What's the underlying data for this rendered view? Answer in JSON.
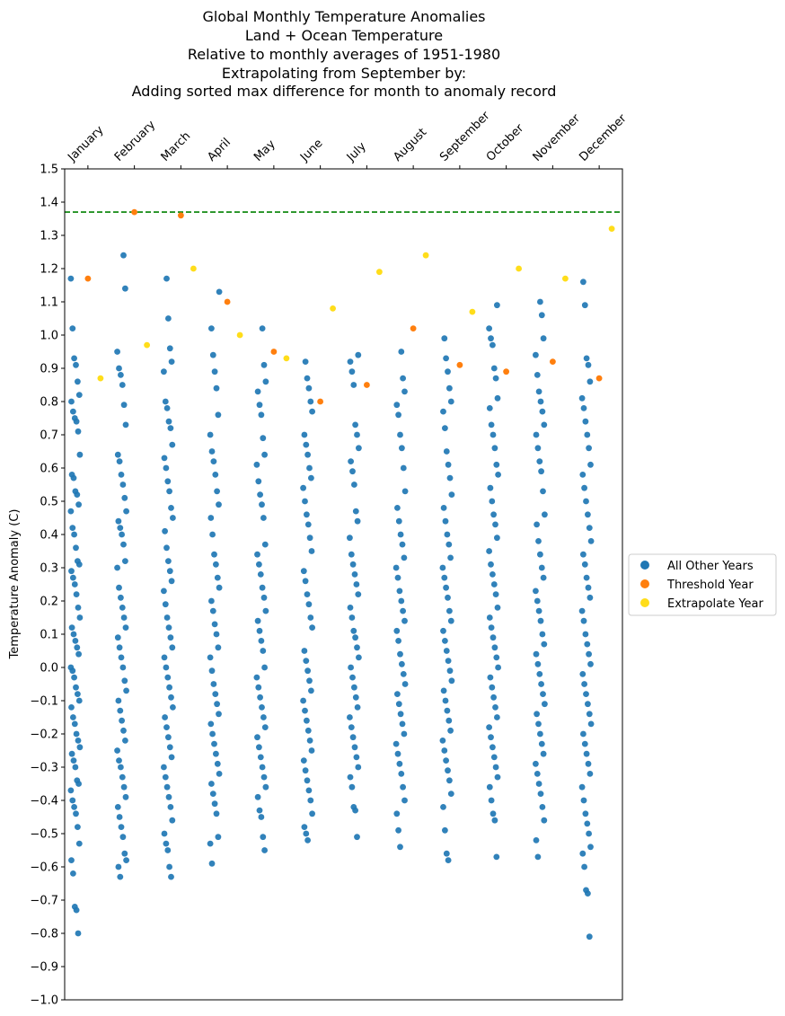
{
  "chart_data": {
    "type": "scatter",
    "title_lines": [
      "Global Monthly Temperature Anomalies",
      "Land + Ocean Temperature",
      "Relative to monthly averages of 1951-1980",
      "Extrapolating from September by:",
      "Adding sorted max difference for month to anomaly record"
    ],
    "ylabel": "Temperature Anomaly (C)",
    "xlabel": "",
    "categories": [
      "January",
      "February",
      "March",
      "April",
      "May",
      "June",
      "July",
      "August",
      "September",
      "October",
      "November",
      "December"
    ],
    "x_axis_position": "top",
    "ylim": [
      -1.0,
      1.5
    ],
    "yticks": [
      -1.0,
      -0.9,
      -0.8,
      -0.7,
      -0.6,
      -0.5,
      -0.4,
      -0.3,
      -0.2,
      -0.1,
      0.0,
      0.1,
      0.2,
      0.3,
      0.4,
      0.5,
      0.6,
      0.7,
      0.8,
      0.9,
      1.0,
      1.1,
      1.2,
      1.3,
      1.4,
      1.5
    ],
    "ytick_labels": [
      "−1.0",
      "−0.9",
      "−0.8",
      "−0.7",
      "−0.6",
      "−0.5",
      "−0.4",
      "−0.3",
      "−0.2",
      "−0.1",
      "0.0",
      "0.1",
      "0.2",
      "0.3",
      "0.4",
      "0.5",
      "0.6",
      "0.7",
      "0.8",
      "0.9",
      "1.0",
      "1.1",
      "1.2",
      "1.3",
      "1.4",
      "1.5"
    ],
    "reference_line": {
      "y": 1.37,
      "style": "dashed",
      "color": "#008000"
    },
    "legend_position": "right",
    "grid": false,
    "series": [
      {
        "name": "All Other Years",
        "color": "#1f77b4",
        "points_per_month": [
          [
            1.17,
            1.02,
            0.93,
            0.91,
            0.86,
            0.82,
            0.8,
            0.77,
            0.75,
            0.74,
            0.71,
            0.64,
            0.58,
            0.57,
            0.53,
            0.52,
            0.49,
            0.47,
            0.42,
            0.4,
            0.36,
            0.32,
            0.31,
            0.29,
            0.27,
            0.25,
            0.22,
            0.18,
            0.15,
            0.12,
            0.1,
            0.08,
            0.06,
            0.04,
            0.0,
            -0.01,
            -0.03,
            -0.06,
            -0.08,
            -0.1,
            -0.12,
            -0.15,
            -0.17,
            -0.2,
            -0.22,
            -0.24,
            -0.26,
            -0.28,
            -0.3,
            -0.34,
            -0.35,
            -0.37,
            -0.4,
            -0.42,
            -0.44,
            -0.48,
            -0.53,
            -0.58,
            -0.62,
            -0.72,
            -0.73,
            -0.8
          ],
          [
            1.24,
            1.14,
            0.95,
            0.9,
            0.88,
            0.85,
            0.79,
            0.73,
            0.64,
            0.62,
            0.58,
            0.55,
            0.51,
            0.47,
            0.44,
            0.42,
            0.4,
            0.37,
            0.32,
            0.3,
            0.24,
            0.21,
            0.18,
            0.15,
            0.12,
            0.09,
            0.06,
            0.03,
            0.0,
            -0.04,
            -0.07,
            -0.1,
            -0.13,
            -0.16,
            -0.19,
            -0.22,
            -0.25,
            -0.28,
            -0.3,
            -0.33,
            -0.36,
            -0.39,
            -0.42,
            -0.45,
            -0.48,
            -0.51,
            -0.56,
            -0.58,
            -0.6,
            -0.63
          ],
          [
            1.17,
            1.05,
            0.96,
            0.92,
            0.89,
            0.8,
            0.78,
            0.74,
            0.72,
            0.67,
            0.63,
            0.6,
            0.56,
            0.53,
            0.48,
            0.45,
            0.41,
            0.36,
            0.32,
            0.29,
            0.26,
            0.23,
            0.19,
            0.15,
            0.12,
            0.09,
            0.06,
            0.03,
            0.0,
            -0.03,
            -0.06,
            -0.09,
            -0.12,
            -0.15,
            -0.18,
            -0.21,
            -0.24,
            -0.27,
            -0.3,
            -0.33,
            -0.36,
            -0.39,
            -0.42,
            -0.46,
            -0.5,
            -0.53,
            -0.55,
            -0.6,
            -0.63
          ],
          [
            1.13,
            1.02,
            0.94,
            0.89,
            0.84,
            0.76,
            0.7,
            0.65,
            0.62,
            0.58,
            0.53,
            0.49,
            0.45,
            0.4,
            0.34,
            0.31,
            0.27,
            0.24,
            0.2,
            0.17,
            0.13,
            0.1,
            0.06,
            0.03,
            -0.01,
            -0.05,
            -0.08,
            -0.11,
            -0.14,
            -0.17,
            -0.2,
            -0.23,
            -0.26,
            -0.29,
            -0.32,
            -0.35,
            -0.38,
            -0.41,
            -0.44,
            -0.51,
            -0.53,
            -0.59
          ],
          [
            1.02,
            0.91,
            0.86,
            0.83,
            0.79,
            0.76,
            0.69,
            0.64,
            0.61,
            0.56,
            0.52,
            0.49,
            0.45,
            0.37,
            0.34,
            0.31,
            0.28,
            0.24,
            0.21,
            0.17,
            0.14,
            0.11,
            0.08,
            0.05,
            0.0,
            -0.03,
            -0.06,
            -0.09,
            -0.12,
            -0.15,
            -0.18,
            -0.21,
            -0.24,
            -0.27,
            -0.3,
            -0.33,
            -0.36,
            -0.39,
            -0.43,
            -0.45,
            -0.51,
            -0.55
          ],
          [
            0.92,
            0.87,
            0.84,
            0.8,
            0.77,
            0.7,
            0.67,
            0.64,
            0.6,
            0.57,
            0.54,
            0.5,
            0.46,
            0.43,
            0.39,
            0.35,
            0.29,
            0.26,
            0.22,
            0.19,
            0.15,
            0.12,
            0.05,
            0.02,
            -0.01,
            -0.04,
            -0.07,
            -0.1,
            -0.13,
            -0.16,
            -0.19,
            -0.22,
            -0.25,
            -0.28,
            -0.31,
            -0.34,
            -0.37,
            -0.4,
            -0.44,
            -0.48,
            -0.5,
            -0.52
          ],
          [
            0.94,
            0.92,
            0.89,
            0.85,
            0.73,
            0.7,
            0.66,
            0.62,
            0.59,
            0.55,
            0.47,
            0.44,
            0.39,
            0.34,
            0.31,
            0.28,
            0.25,
            0.22,
            0.18,
            0.15,
            0.11,
            0.09,
            0.06,
            0.03,
            0.0,
            -0.03,
            -0.06,
            -0.09,
            -0.12,
            -0.15,
            -0.18,
            -0.21,
            -0.24,
            -0.27,
            -0.3,
            -0.33,
            -0.36,
            -0.42,
            -0.43,
            -0.51
          ],
          [
            0.95,
            0.87,
            0.83,
            0.79,
            0.76,
            0.7,
            0.66,
            0.6,
            0.53,
            0.48,
            0.44,
            0.4,
            0.37,
            0.33,
            0.3,
            0.27,
            0.23,
            0.2,
            0.17,
            0.14,
            0.11,
            0.08,
            0.04,
            0.01,
            -0.02,
            -0.05,
            -0.08,
            -0.11,
            -0.14,
            -0.17,
            -0.2,
            -0.23,
            -0.26,
            -0.29,
            -0.32,
            -0.36,
            -0.4,
            -0.44,
            -0.49,
            -0.54
          ],
          [
            0.99,
            0.93,
            0.89,
            0.84,
            0.8,
            0.77,
            0.72,
            0.65,
            0.61,
            0.57,
            0.52,
            0.48,
            0.44,
            0.4,
            0.37,
            0.33,
            0.3,
            0.27,
            0.24,
            0.21,
            0.17,
            0.14,
            0.11,
            0.08,
            0.05,
            0.02,
            -0.01,
            -0.04,
            -0.07,
            -0.1,
            -0.13,
            -0.16,
            -0.19,
            -0.22,
            -0.25,
            -0.28,
            -0.31,
            -0.34,
            -0.38,
            -0.42,
            -0.49,
            -0.56,
            -0.58
          ],
          [
            1.09,
            1.02,
            0.99,
            0.97,
            0.9,
            0.87,
            0.81,
            0.78,
            0.73,
            0.7,
            0.66,
            0.61,
            0.58,
            0.54,
            0.5,
            0.46,
            0.43,
            0.39,
            0.35,
            0.31,
            0.28,
            0.25,
            0.22,
            0.18,
            0.15,
            0.12,
            0.09,
            0.06,
            0.03,
            0.0,
            -0.03,
            -0.06,
            -0.09,
            -0.12,
            -0.15,
            -0.18,
            -0.21,
            -0.24,
            -0.27,
            -0.3,
            -0.33,
            -0.36,
            -0.4,
            -0.44,
            -0.46,
            -0.57
          ],
          [
            1.1,
            1.06,
            0.99,
            0.94,
            0.88,
            0.83,
            0.8,
            0.77,
            0.73,
            0.7,
            0.66,
            0.62,
            0.59,
            0.53,
            0.46,
            0.43,
            0.38,
            0.34,
            0.3,
            0.27,
            0.23,
            0.2,
            0.17,
            0.14,
            0.1,
            0.07,
            0.04,
            0.01,
            -0.02,
            -0.05,
            -0.08,
            -0.11,
            -0.14,
            -0.17,
            -0.2,
            -0.23,
            -0.26,
            -0.29,
            -0.32,
            -0.35,
            -0.38,
            -0.42,
            -0.46,
            -0.52,
            -0.57
          ],
          [
            1.16,
            1.09,
            0.93,
            0.91,
            0.86,
            0.81,
            0.78,
            0.74,
            0.7,
            0.66,
            0.61,
            0.58,
            0.54,
            0.5,
            0.46,
            0.42,
            0.38,
            0.34,
            0.31,
            0.27,
            0.24,
            0.21,
            0.17,
            0.14,
            0.1,
            0.07,
            0.04,
            0.01,
            -0.02,
            -0.05,
            -0.08,
            -0.11,
            -0.14,
            -0.17,
            -0.2,
            -0.23,
            -0.26,
            -0.29,
            -0.32,
            -0.36,
            -0.4,
            -0.44,
            -0.47,
            -0.5,
            -0.54,
            -0.56,
            -0.6,
            -0.67,
            -0.68,
            -0.81
          ]
        ]
      },
      {
        "name": "Threshold Year",
        "color": "#ff7f0e",
        "values": [
          1.17,
          1.37,
          1.36,
          1.1,
          0.95,
          0.8,
          0.85,
          1.02,
          0.91,
          0.89,
          0.92,
          0.87
        ]
      },
      {
        "name": "Extrapolate Year",
        "color": "#ffdd1a",
        "values": [
          0.87,
          0.97,
          1.2,
          1.0,
          0.93,
          1.08,
          1.19,
          1.24,
          1.07,
          1.2,
          1.17,
          1.32
        ]
      }
    ]
  }
}
